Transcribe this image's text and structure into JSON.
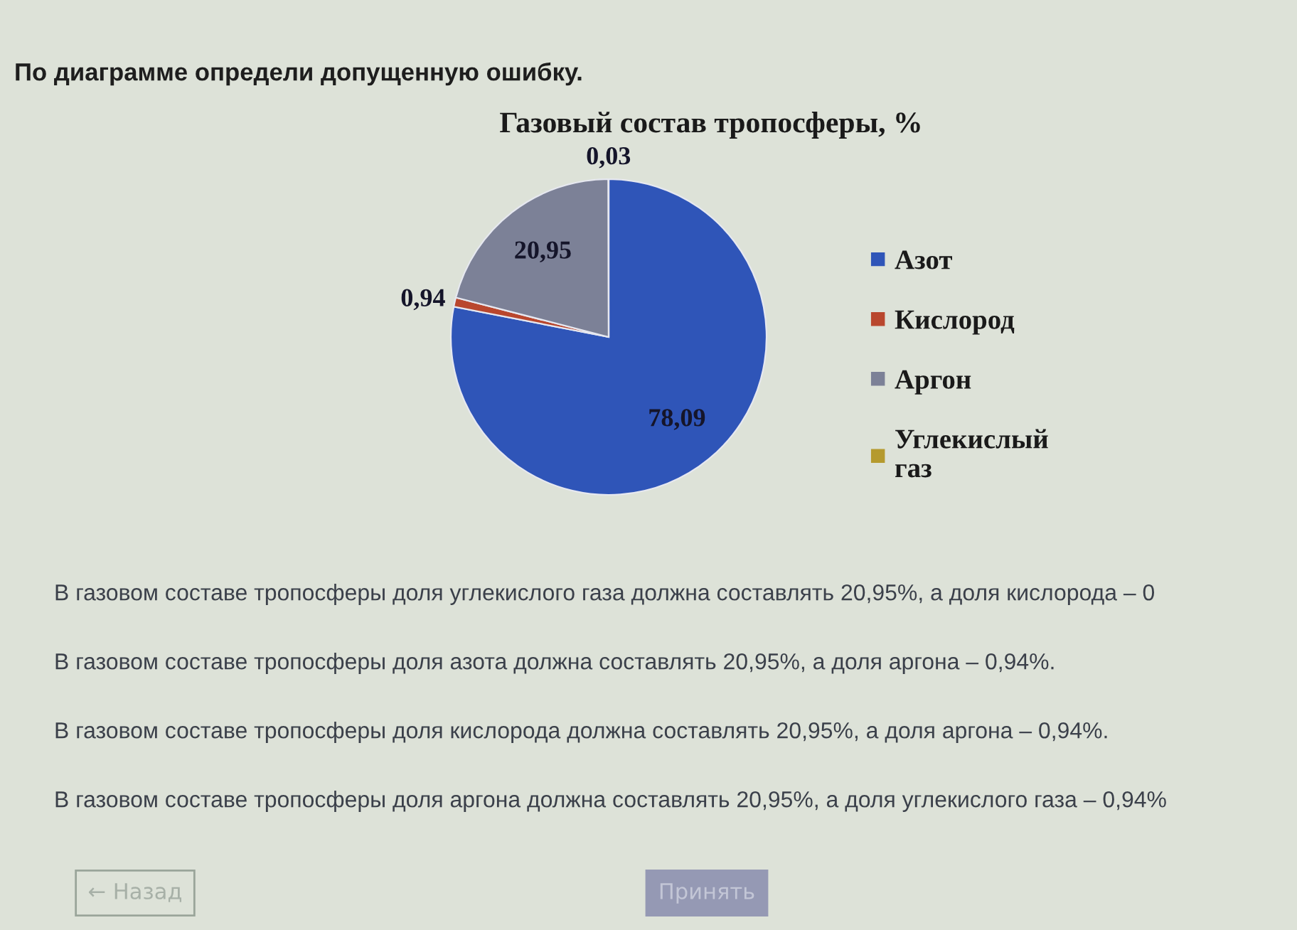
{
  "chart_data": {
    "type": "pie",
    "title": "Газовый состав тропосферы, %",
    "categories": [
      "Азот",
      "Кислород",
      "Аргон",
      "Углекислый\nгаз"
    ],
    "values": [
      78.09,
      0.94,
      20.95,
      0.03
    ],
    "colors": [
      "#2f55b8",
      "#b9472e",
      "#7c8197",
      "#b59a2e"
    ],
    "value_labels": [
      "78,09",
      "0,94",
      "20,95",
      "0,03"
    ],
    "legend": "right",
    "annotations": [
      "По диаграмме определи допущенную ошибку.",
      "В газовом составе тропосферы доля углекислого газа должна составлять 20,95%, а доля кислорода – 0",
      "В газовом составе тропосферы доля азота должна составлять 20,95%, а доля аргона – 0,94%.",
      "В газовом составе тропосферы доля кислорода должна составлять 20,95%, а доля аргона – 0,94%.",
      "В газовом составе тропосферы доля аргона должна составлять 20,95%, а доля углекислого газа – 0,94%",
      "← Назад",
      "Принять"
    ]
  }
}
